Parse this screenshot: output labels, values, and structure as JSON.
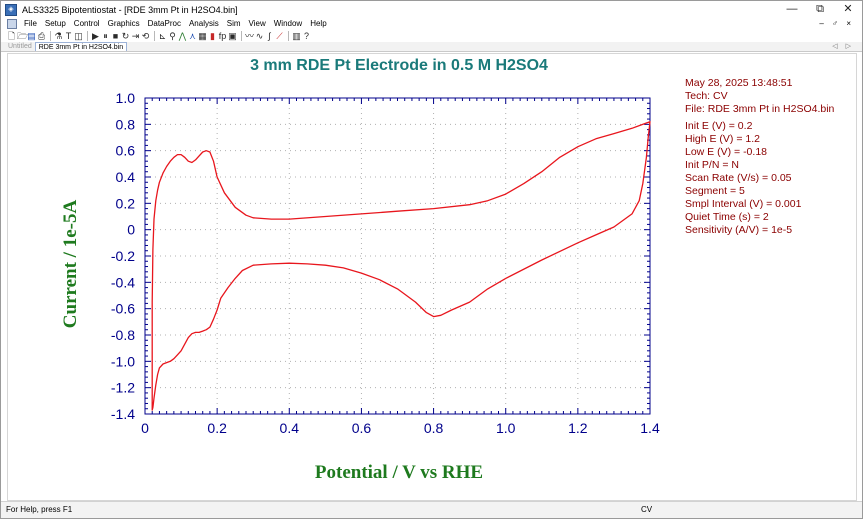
{
  "window": {
    "title": "ALS3325 Bipotentiostat - [RDE 3mm Pt  in H2SO4.bin]",
    "controls": {
      "minimize": "—",
      "restore": "⧉",
      "close": "✕"
    }
  },
  "menu": {
    "items": [
      "File",
      "Setup",
      "Control",
      "Graphics",
      "DataProc",
      "Analysis",
      "Sim",
      "View",
      "Window",
      "Help"
    ],
    "right_controls": "– ♂ ×"
  },
  "toolbar": {
    "icons": [
      {
        "name": "new-file-icon",
        "glyph": "🗋",
        "color": "plain"
      },
      {
        "name": "open-file-icon",
        "glyph": "🗁",
        "color": "plain"
      },
      {
        "name": "save-icon",
        "glyph": "▤",
        "color": "blue"
      },
      {
        "name": "print-icon",
        "glyph": "⎙",
        "color": "plain"
      },
      {
        "name": "sep",
        "glyph": "",
        "color": "plain"
      },
      {
        "name": "technique-icon",
        "glyph": "⚗",
        "color": "plain"
      },
      {
        "name": "text-tool-icon",
        "glyph": "T",
        "color": "plain"
      },
      {
        "name": "parameters-icon",
        "glyph": "◫",
        "color": "plain"
      },
      {
        "name": "sep",
        "glyph": "",
        "color": "plain"
      },
      {
        "name": "run-icon",
        "glyph": "▶",
        "color": "plain"
      },
      {
        "name": "pause-icon",
        "glyph": "⏸",
        "color": "plain"
      },
      {
        "name": "stop-icon",
        "glyph": "■",
        "color": "plain"
      },
      {
        "name": "reverse-scan-icon",
        "glyph": "↻",
        "color": "plain"
      },
      {
        "name": "step-icon",
        "glyph": "⇥",
        "color": "plain"
      },
      {
        "name": "repeat-icon",
        "glyph": "⟲",
        "color": "plain"
      },
      {
        "name": "sep",
        "glyph": "",
        "color": "plain"
      },
      {
        "name": "graph-icon",
        "glyph": "⊾",
        "color": "plain"
      },
      {
        "name": "zoom-icon",
        "glyph": "⚲",
        "color": "plain"
      },
      {
        "name": "peak-icon",
        "glyph": "⋀",
        "color": "green"
      },
      {
        "name": "overlay-icon",
        "glyph": "⋏",
        "color": "blue"
      },
      {
        "name": "data-list-icon",
        "glyph": "▦",
        "color": "plain"
      },
      {
        "name": "bar-chart-icon",
        "glyph": "▮",
        "color": "red"
      },
      {
        "name": "fp-icon",
        "glyph": "fp",
        "color": "plain"
      },
      {
        "name": "calculator-icon",
        "glyph": "▣",
        "color": "plain"
      },
      {
        "name": "sep",
        "glyph": "",
        "color": "plain"
      },
      {
        "name": "smooth-icon",
        "glyph": "〰",
        "color": "plain"
      },
      {
        "name": "derivative-icon",
        "glyph": "∿",
        "color": "plain"
      },
      {
        "name": "integrate-icon",
        "glyph": "∫",
        "color": "plain"
      },
      {
        "name": "baseline-icon",
        "glyph": "⟋",
        "color": "red"
      },
      {
        "name": "sep",
        "glyph": "",
        "color": "plain"
      },
      {
        "name": "columns-icon",
        "glyph": "▥",
        "color": "plain"
      },
      {
        "name": "help-icon",
        "glyph": "?",
        "color": "plain"
      }
    ]
  },
  "tabs": [
    {
      "label": "Untitled",
      "active": false
    },
    {
      "label": "RDE 3mm Pt  in H2SO4.bin",
      "active": true
    }
  ],
  "tab_nav": "◁ ▷",
  "info_panel": {
    "color": "#8b0000",
    "header": [
      "May 28, 2025    13:48:51",
      "Tech: CV",
      "File: RDE 3mm Pt  in H2SO4.bin"
    ],
    "params": [
      "Init E (V) = 0.2",
      "High E (V) = 1.2",
      "Low E (V) = -0.18",
      "Init P/N = N",
      "Scan Rate (V/s) = 0.05",
      "Segment = 5",
      "Smpl Interval (V) = 0.001",
      "Quiet Time (s) = 2",
      "Sensitivity (A/V) = 1e-5"
    ]
  },
  "status": {
    "left": "For Help, press F1",
    "right": "CV"
  },
  "chart_data": {
    "type": "line",
    "title": "3 mm RDE Pt Electrode in 0.5 M H2SO4",
    "title_color": "#1a7a7a",
    "xlabel": "Potential / V vs RHE",
    "ylabel": "Current / 1e-5A",
    "label_color": "#1e7a1e",
    "axis_color": "#00008b",
    "line_color": "#e8161d",
    "xlim": [
      0.0,
      1.4
    ],
    "ylim": [
      -1.4,
      1.0
    ],
    "xticks": [
      "0",
      "0.2",
      "0.4",
      "0.6",
      "0.8",
      "1.0",
      "1.2",
      "1.4"
    ],
    "yticks": [
      "1.0",
      "0.8",
      "0.6",
      "0.4",
      "0.2",
      "0",
      "-0.2",
      "-0.4",
      "-0.6",
      "-0.8",
      "-1.0",
      "-1.2",
      "-1.4"
    ],
    "grid": "dotted",
    "series": [
      {
        "x": [
          0.02,
          0.022,
          0.025,
          0.03,
          0.035,
          0.04,
          0.05,
          0.06,
          0.07,
          0.08,
          0.09,
          0.1,
          0.11,
          0.12,
          0.13,
          0.14,
          0.15,
          0.16,
          0.17,
          0.18,
          0.19,
          0.2,
          0.22,
          0.25,
          0.28,
          0.3,
          0.35,
          0.4,
          0.5,
          0.6,
          0.7,
          0.8,
          0.9,
          0.95,
          1.0,
          1.05,
          1.1,
          1.15,
          1.2,
          1.25,
          1.3,
          1.35,
          1.39,
          1.4,
          1.395,
          1.39,
          1.38,
          1.37,
          1.35,
          1.3,
          1.25,
          1.2,
          1.1,
          1.0,
          0.95,
          0.9,
          0.85,
          0.82,
          0.8,
          0.78,
          0.75,
          0.7,
          0.65,
          0.6,
          0.55,
          0.5,
          0.45,
          0.4,
          0.35,
          0.3,
          0.27,
          0.25,
          0.23,
          0.21,
          0.2,
          0.19,
          0.18,
          0.17,
          0.16,
          0.15,
          0.14,
          0.13,
          0.12,
          0.11,
          0.1,
          0.09,
          0.08,
          0.07,
          0.06,
          0.05,
          0.04,
          0.035,
          0.03,
          0.025,
          0.022,
          0.02
        ],
        "y": [
          -0.55,
          -0.15,
          0.08,
          0.22,
          0.3,
          0.36,
          0.43,
          0.48,
          0.52,
          0.55,
          0.57,
          0.57,
          0.55,
          0.52,
          0.51,
          0.53,
          0.56,
          0.59,
          0.6,
          0.59,
          0.52,
          0.4,
          0.28,
          0.17,
          0.11,
          0.09,
          0.08,
          0.08,
          0.1,
          0.12,
          0.14,
          0.16,
          0.19,
          0.22,
          0.27,
          0.35,
          0.44,
          0.55,
          0.63,
          0.69,
          0.73,
          0.77,
          0.81,
          0.82,
          0.7,
          0.55,
          0.35,
          0.22,
          0.12,
          0.02,
          -0.04,
          -0.1,
          -0.23,
          -0.37,
          -0.45,
          -0.55,
          -0.61,
          -0.65,
          -0.66,
          -0.63,
          -0.55,
          -0.45,
          -0.38,
          -0.33,
          -0.29,
          -0.27,
          -0.26,
          -0.255,
          -0.26,
          -0.27,
          -0.31,
          -0.37,
          -0.44,
          -0.52,
          -0.61,
          -0.68,
          -0.74,
          -0.76,
          -0.77,
          -0.78,
          -0.78,
          -0.79,
          -0.82,
          -0.87,
          -0.92,
          -0.95,
          -0.98,
          -1.0,
          -1.01,
          -1.02,
          -1.05,
          -1.1,
          -1.18,
          -1.28,
          -1.35,
          -1.37
        ]
      }
    ]
  }
}
